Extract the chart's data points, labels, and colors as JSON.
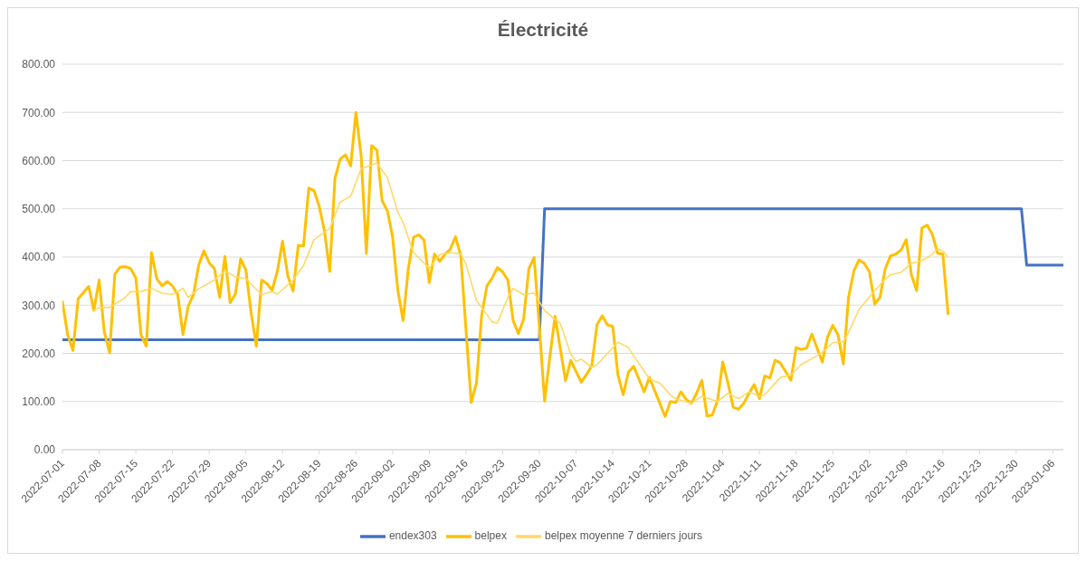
{
  "chart_data": {
    "type": "line",
    "title": "Électricité",
    "legend": "bottom",
    "grid": "y",
    "xlim": [
      "2022-07-01",
      "2023-01-08"
    ],
    "xticks": [
      "2022-07-01",
      "2022-07-08",
      "2022-07-15",
      "2022-07-22",
      "2022-07-29",
      "2022-08-05",
      "2022-08-12",
      "2022-08-19",
      "2022-08-26",
      "2022-09-02",
      "2022-09-09",
      "2022-09-16",
      "2022-09-23",
      "2022-09-30",
      "2022-10-07",
      "2022-10-14",
      "2022-10-21",
      "2022-10-28",
      "2022-11-04",
      "2022-11-11",
      "2022-11-18",
      "2022-11-25",
      "2022-12-02",
      "2022-12-09",
      "2022-12-16",
      "2022-12-23",
      "2022-12-30",
      "2023-01-06"
    ],
    "ylim": [
      0,
      800
    ],
    "yticks": [
      {
        "value": 0,
        "label": "0.00"
      },
      {
        "value": 100,
        "label": "100.00"
      },
      {
        "value": 200,
        "label": "200.00"
      },
      {
        "value": 300,
        "label": "300.00"
      },
      {
        "value": 400,
        "label": "400.00"
      },
      {
        "value": 500,
        "label": "500.00"
      },
      {
        "value": 600,
        "label": "600.00"
      },
      {
        "value": 700,
        "label": "700.00"
      },
      {
        "value": 800,
        "label": "800.00"
      }
    ],
    "series": [
      {
        "name": "endex303",
        "color": "#4472c4",
        "x": [
          "2022-07-01",
          "2022-09-30",
          "2022-10-01",
          "2022-12-31",
          "2023-01-01",
          "2023-01-08"
        ],
        "values": [
          228,
          228,
          500,
          500,
          383,
          383
        ]
      },
      {
        "name": "belpex",
        "color": "#ffc000",
        "x": [
          "2022-07-01",
          "2022-07-02",
          "2022-07-03",
          "2022-07-04",
          "2022-07-06",
          "2022-07-07",
          "2022-07-08",
          "2022-07-09",
          "2022-07-10",
          "2022-07-11",
          "2022-07-12",
          "2022-07-13",
          "2022-07-14",
          "2022-07-15",
          "2022-07-16",
          "2022-07-17",
          "2022-07-18",
          "2022-07-19",
          "2022-07-20",
          "2022-07-21",
          "2022-07-22",
          "2022-07-23",
          "2022-07-24",
          "2022-07-25",
          "2022-07-26",
          "2022-07-27",
          "2022-07-28",
          "2022-07-29",
          "2022-07-30",
          "2022-07-31",
          "2022-08-01",
          "2022-08-02",
          "2022-08-03",
          "2022-08-04",
          "2022-08-05",
          "2022-08-06",
          "2022-08-07",
          "2022-08-08",
          "2022-08-09",
          "2022-08-10",
          "2022-08-11",
          "2022-08-12",
          "2022-08-13",
          "2022-08-14",
          "2022-08-15",
          "2022-08-16",
          "2022-08-17",
          "2022-08-18",
          "2022-08-19",
          "2022-08-20",
          "2022-08-21",
          "2022-08-22",
          "2022-08-23",
          "2022-08-24",
          "2022-08-25",
          "2022-08-26",
          "2022-08-27",
          "2022-08-28",
          "2022-08-29",
          "2022-08-30",
          "2022-08-31",
          "2022-09-01",
          "2022-09-02",
          "2022-09-03",
          "2022-09-04",
          "2022-09-05",
          "2022-09-06",
          "2022-09-07",
          "2022-09-08",
          "2022-09-09",
          "2022-09-10",
          "2022-09-11",
          "2022-09-12",
          "2022-09-13",
          "2022-09-14",
          "2022-09-15",
          "2022-09-16",
          "2022-09-17",
          "2022-09-18",
          "2022-09-19",
          "2022-09-20",
          "2022-09-21",
          "2022-09-22",
          "2022-09-23",
          "2022-09-24",
          "2022-09-25",
          "2022-09-26",
          "2022-09-27",
          "2022-09-28",
          "2022-09-29",
          "2022-09-30",
          "2022-10-01",
          "2022-10-02",
          "2022-10-03",
          "2022-10-05",
          "2022-10-06",
          "2022-10-08",
          "2022-10-09",
          "2022-10-10",
          "2022-10-11",
          "2022-10-12",
          "2022-10-13",
          "2022-10-14",
          "2022-10-15",
          "2022-10-16",
          "2022-10-17",
          "2022-10-18",
          "2022-10-19",
          "2022-10-20",
          "2022-10-21",
          "2022-10-22",
          "2022-10-23",
          "2022-10-24",
          "2022-10-25",
          "2022-10-26",
          "2022-10-27",
          "2022-10-28",
          "2022-10-29",
          "2022-10-30",
          "2022-10-31",
          "2022-11-01",
          "2022-11-02",
          "2022-11-03",
          "2022-11-04",
          "2022-11-05",
          "2022-11-06",
          "2022-11-07",
          "2022-11-08",
          "2022-11-09",
          "2022-11-10",
          "2022-11-11",
          "2022-11-12",
          "2022-11-13",
          "2022-11-14",
          "2022-11-15",
          "2022-11-16",
          "2022-11-17",
          "2022-11-18",
          "2022-11-19",
          "2022-11-20",
          "2022-11-21",
          "2022-11-23",
          "2022-11-24",
          "2022-11-25",
          "2022-11-26",
          "2022-11-27",
          "2022-11-28",
          "2022-11-29",
          "2022-11-30",
          "2022-12-01",
          "2022-12-02",
          "2022-12-03",
          "2022-12-04",
          "2022-12-05",
          "2022-12-06",
          "2022-12-07",
          "2022-12-08",
          "2022-12-09",
          "2022-12-10",
          "2022-12-11",
          "2022-12-12",
          "2022-12-13",
          "2022-12-14",
          "2022-12-15",
          "2022-12-16",
          "2022-12-17"
        ],
        "values": [
          307,
          238,
          206,
          313,
          339,
          289,
          352,
          244,
          201,
          364,
          379,
          380,
          376,
          357,
          238,
          215,
          409,
          355,
          340,
          349,
          340,
          322,
          239,
          298,
          322,
          383,
          413,
          388,
          376,
          316,
          401,
          305,
          323,
          396,
          373,
          284,
          215,
          352,
          345,
          331,
          370,
          433,
          361,
          329,
          424,
          423,
          543,
          538,
          505,
          454,
          370,
          563,
          603,
          612,
          589,
          700,
          610,
          407,
          631,
          622,
          517,
          496,
          442,
          331,
          268,
          376,
          441,
          446,
          435,
          347,
          406,
          391,
          406,
          416,
          442,
          403,
          250,
          98,
          138,
          280,
          340,
          356,
          378,
          369,
          352,
          268,
          241,
          271,
          376,
          399,
          256,
          101,
          192,
          277,
          143,
          185,
          140,
          156,
          174,
          259,
          278,
          259,
          256,
          155,
          114,
          161,
          173,
          147,
          120,
          150,
          123,
          96,
          69,
          100,
          98,
          120,
          105,
          96,
          117,
          144,
          70,
          72,
          102,
          182,
          138,
          88,
          84,
          96,
          117,
          135,
          106,
          153,
          149,
          186,
          180,
          162,
          144,
          212,
          208,
          211,
          240,
          182,
          234,
          258,
          238,
          178,
          316,
          370,
          394,
          387,
          369,
          302,
          316,
          375,
          402,
          406,
          414,
          436,
          363,
          330,
          460,
          466,
          447,
          408,
          406,
          282
        ]
      },
      {
        "name": "belpex moyenne 7 derniers jours",
        "color": "#ffd966",
        "x": [
          "2022-07-07",
          "2022-07-08",
          "2022-07-10",
          "2022-07-13",
          "2022-07-14",
          "2022-07-16",
          "2022-07-18",
          "2022-07-20",
          "2022-07-22",
          "2022-07-24",
          "2022-07-25",
          "2022-07-27",
          "2022-07-30",
          "2022-08-01",
          "2022-08-03",
          "2022-08-05",
          "2022-08-08",
          "2022-08-10",
          "2022-08-11",
          "2022-08-14",
          "2022-08-16",
          "2022-08-18",
          "2022-08-21",
          "2022-08-23",
          "2022-08-25",
          "2022-08-27",
          "2022-08-30",
          "2022-09-01",
          "2022-09-03",
          "2022-09-04",
          "2022-09-06",
          "2022-09-09",
          "2022-09-11",
          "2022-09-13",
          "2022-09-15",
          "2022-09-16",
          "2022-09-18",
          "2022-09-21",
          "2022-09-22",
          "2022-09-24",
          "2022-09-25",
          "2022-09-27",
          "2022-09-29",
          "2022-10-01",
          "2022-10-03",
          "2022-10-04",
          "2022-10-06",
          "2022-10-07",
          "2022-10-08",
          "2022-10-10",
          "2022-10-11",
          "2022-10-13",
          "2022-10-15",
          "2022-10-17",
          "2022-10-18",
          "2022-10-21",
          "2022-10-23",
          "2022-10-25",
          "2022-10-26",
          "2022-10-29",
          "2022-10-31",
          "2022-11-03",
          "2022-11-05",
          "2022-11-07",
          "2022-11-09",
          "2022-11-11",
          "2022-11-12",
          "2022-11-15",
          "2022-11-17",
          "2022-11-19",
          "2022-11-21",
          "2022-11-23",
          "2022-11-25",
          "2022-11-27",
          "2022-11-28",
          "2022-11-30",
          "2022-12-03",
          "2022-12-05",
          "2022-12-06",
          "2022-12-08",
          "2022-12-10",
          "2022-12-12",
          "2022-12-14",
          "2022-12-15",
          "2022-12-16",
          "2022-12-17"
        ],
        "values": [
          289,
          295,
          295,
          316,
          328,
          328,
          335,
          325,
          322,
          335,
          316,
          334,
          352,
          371,
          359,
          355,
          322,
          328,
          323,
          352,
          382,
          436,
          459,
          514,
          526,
          583,
          595,
          565,
          493,
          472,
          409,
          376,
          405,
          409,
          406,
          385,
          310,
          265,
          263,
          316,
          335,
          322,
          325,
          289,
          270,
          262,
          198,
          183,
          188,
          171,
          176,
          200,
          223,
          212,
          195,
          147,
          138,
          114,
          106,
          96,
          111,
          100,
          117,
          106,
          120,
          111,
          114,
          150,
          155,
          177,
          189,
          202,
          222,
          224,
          243,
          291,
          330,
          354,
          363,
          368,
          387,
          392,
          406,
          417,
          412,
          400
        ]
      }
    ]
  }
}
